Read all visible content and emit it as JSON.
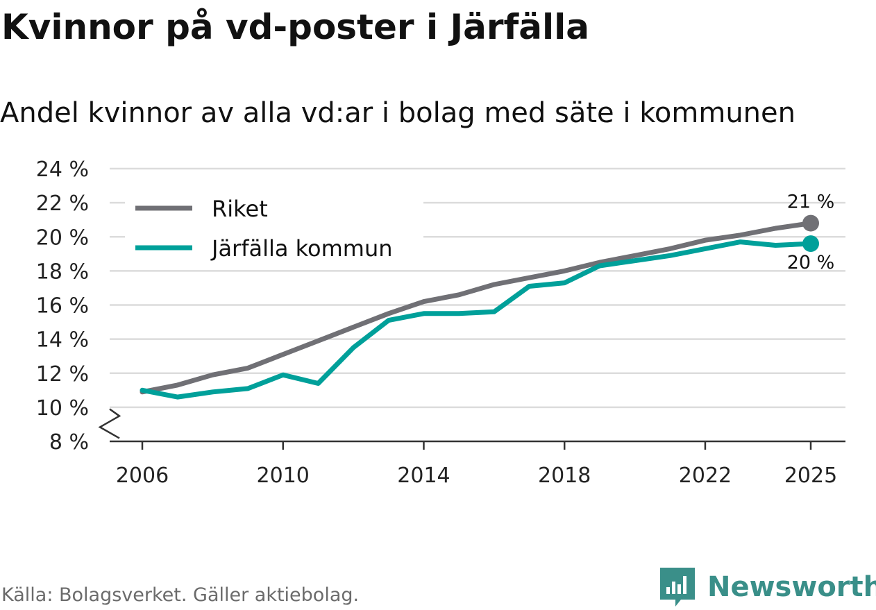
{
  "header": {
    "title": "Kvinnor på vd-poster i Järfälla",
    "subtitle": "Andel kvinnor av alla vd:ar i bolag med säte i kommunen"
  },
  "footer": {
    "source": "Källa: Bolagsverket. Gäller aktiebolag.",
    "brand": "Newsworthy",
    "brand_icon": "bar-chart-logo-icon"
  },
  "colors": {
    "riket": "#707075",
    "kommun": "#00a09a",
    "grid": "#dcdcdc",
    "axis": "#333333",
    "brand": "#3a8f89"
  },
  "chart_data": {
    "type": "line",
    "title": "Kvinnor på vd-poster i Järfälla",
    "subtitle": "Andel kvinnor av alla vd:ar i bolag med säte i kommunen",
    "xlabel": "",
    "ylabel": "",
    "x": [
      2006,
      2007,
      2008,
      2009,
      2010,
      2011,
      2012,
      2013,
      2014,
      2015,
      2016,
      2017,
      2018,
      2019,
      2020,
      2021,
      2022,
      2023,
      2024,
      2025
    ],
    "series": [
      {
        "name": "Riket",
        "color": "#707075",
        "values": [
          10.9,
          11.3,
          11.9,
          12.3,
          13.1,
          13.9,
          14.7,
          15.5,
          16.2,
          16.6,
          17.2,
          17.6,
          18.0,
          18.5,
          18.9,
          19.3,
          19.8,
          20.1,
          20.5,
          20.8
        ],
        "end_label": "21 %"
      },
      {
        "name": "Järfälla kommun",
        "color": "#00a09a",
        "values": [
          11.0,
          10.6,
          10.9,
          11.1,
          11.9,
          11.4,
          13.5,
          15.1,
          15.5,
          15.5,
          15.6,
          17.1,
          17.3,
          18.3,
          18.6,
          18.9,
          19.3,
          19.7,
          19.5,
          19.6
        ],
        "end_label": "20 %"
      }
    ],
    "ylim": [
      8,
      24
    ],
    "y_ticks": [
      8,
      10,
      12,
      14,
      16,
      18,
      20,
      22,
      24
    ],
    "y_tick_labels": [
      "8 %",
      "10 %",
      "12 %",
      "14 %",
      "16 %",
      "18 %",
      "20 %",
      "22 %",
      "24 %"
    ],
    "x_ticks": [
      2006,
      2010,
      2014,
      2018,
      2022,
      2025
    ],
    "x_tick_labels": [
      "2006",
      "2010",
      "2014",
      "2018",
      "2022",
      "2025"
    ],
    "grid": true,
    "axis_break": true,
    "legend": {
      "placement": "top-left",
      "entries": [
        "Riket",
        "Järfälla kommun"
      ]
    }
  }
}
